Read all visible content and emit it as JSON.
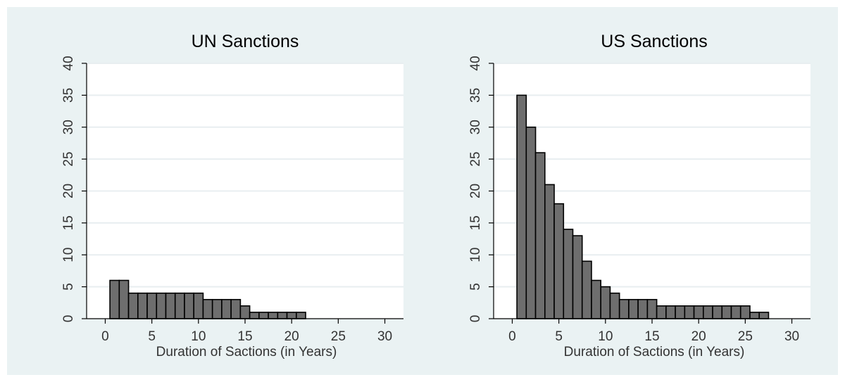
{
  "chart_data": [
    {
      "type": "bar",
      "title": "UN Sanctions",
      "xlabel": "Duration of Sactions (in Years)",
      "ylabel": "",
      "xlim": [
        -2,
        32
      ],
      "ylim": [
        0,
        40
      ],
      "xticks": [
        0,
        5,
        10,
        15,
        20,
        25,
        30
      ],
      "yticks": [
        0,
        5,
        10,
        15,
        20,
        25,
        30,
        35,
        40
      ],
      "grid": true,
      "x": [
        1,
        2,
        3,
        4,
        5,
        6,
        7,
        8,
        9,
        10,
        11,
        12,
        13,
        14,
        15,
        16,
        17,
        18,
        19,
        20,
        21
      ],
      "values": [
        6,
        6,
        4,
        4,
        4,
        4,
        4,
        4,
        4,
        4,
        3,
        3,
        3,
        3,
        2,
        1,
        1,
        1,
        1,
        1,
        1
      ],
      "bar_color": "#6e6e6e"
    },
    {
      "type": "bar",
      "title": "US Sanctions",
      "xlabel": "Duration of Sactions (in Years)",
      "ylabel": "",
      "xlim": [
        -2,
        32
      ],
      "ylim": [
        0,
        40
      ],
      "xticks": [
        0,
        5,
        10,
        15,
        20,
        25,
        30
      ],
      "yticks": [
        0,
        5,
        10,
        15,
        20,
        25,
        30,
        35,
        40
      ],
      "grid": true,
      "x": [
        1,
        2,
        3,
        4,
        5,
        6,
        7,
        8,
        9,
        10,
        11,
        12,
        13,
        14,
        15,
        16,
        17,
        18,
        19,
        20,
        21,
        22,
        23,
        24,
        25,
        26,
        27
      ],
      "values": [
        35,
        30,
        26,
        21,
        18,
        14,
        13,
        9,
        6,
        5,
        4,
        3,
        3,
        3,
        3,
        2,
        2,
        2,
        2,
        2,
        2,
        2,
        2,
        2,
        2,
        1,
        1
      ],
      "bar_color": "#6e6e6e"
    }
  ]
}
